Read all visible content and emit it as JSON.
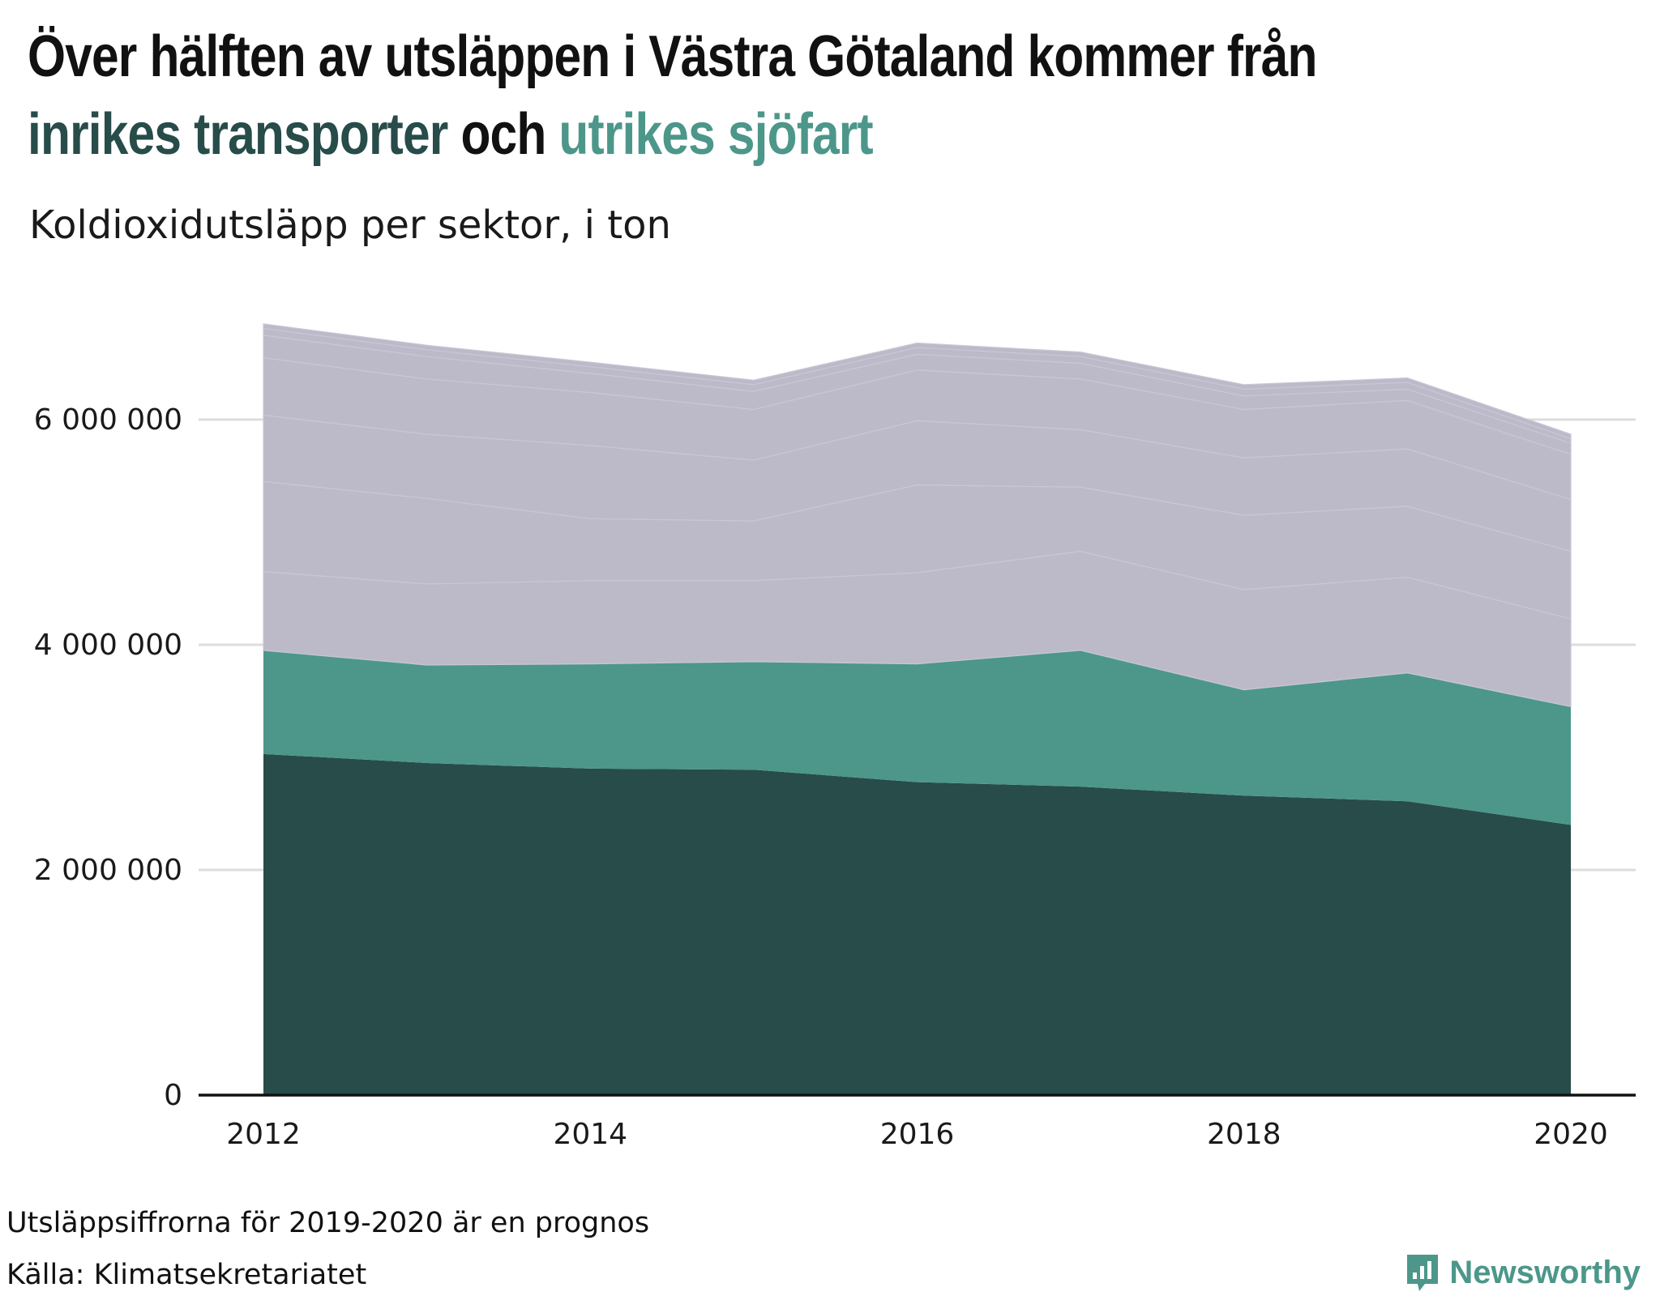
{
  "header": {
    "title_line1": "Över hälften av utsläppen i Västra Götaland kommer från",
    "title_inrikes": "inrikes transporter",
    "title_och": " och ",
    "title_utrikes": "utrikes sjöfart",
    "subtitle": "Koldioxidutsläpp per sektor, i ton"
  },
  "footer": {
    "note": "Utsläppsiffrorna för 2019-2020 är en prognos",
    "source": "Källa: Klimatsekretariatet",
    "brand": "Newsworthy"
  },
  "colors": {
    "inrikes": "#274c4a",
    "utrikes": "#4c978a",
    "other": "#bcbac9",
    "grid": "#dddddd",
    "axis": "#111111",
    "brand": "#4c978a"
  },
  "icons": {
    "brand": "newsworthy-logo-icon"
  },
  "chart_data": {
    "type": "area",
    "stacked": true,
    "x": [
      2012,
      2013,
      2014,
      2015,
      2016,
      2017,
      2018,
      2019,
      2020
    ],
    "xticks": [
      "2012",
      "2014",
      "2016",
      "2018",
      "2020"
    ],
    "yticks": [
      "0",
      "2 000 000",
      "4 000 000",
      "6 000 000"
    ],
    "ylim": [
      0,
      7000000
    ],
    "grid": true,
    "series": [
      {
        "color": "#274c4a",
        "values": [
          3030000,
          2950000,
          2900000,
          2890000,
          2780000,
          2740000,
          2660000,
          2610000,
          2400000
        ]
      },
      {
        "color": "#4c978a",
        "values": [
          920000,
          870000,
          930000,
          960000,
          1050000,
          1210000,
          940000,
          1140000,
          1050000
        ]
      },
      {
        "color": "#bcbac9",
        "values": [
          700000,
          720000,
          740000,
          720000,
          810000,
          880000,
          890000,
          850000,
          780000
        ]
      },
      {
        "color": "#bcbac9",
        "values": [
          800000,
          760000,
          550000,
          530000,
          780000,
          570000,
          660000,
          630000,
          600000
        ]
      },
      {
        "color": "#bcbac9",
        "values": [
          590000,
          570000,
          650000,
          540000,
          570000,
          510000,
          510000,
          510000,
          460000
        ]
      },
      {
        "color": "#bcbac9",
        "values": [
          510000,
          490000,
          470000,
          450000,
          450000,
          450000,
          430000,
          430000,
          400000
        ]
      },
      {
        "color": "#bcbac9",
        "values": [
          200000,
          200000,
          170000,
          160000,
          140000,
          140000,
          120000,
          100000,
          100000
        ]
      },
      {
        "color": "#bcbac9",
        "values": [
          60000,
          60000,
          60000,
          60000,
          60000,
          60000,
          60000,
          60000,
          40000
        ]
      },
      {
        "color": "#bcbac9",
        "values": [
          40000,
          40000,
          40000,
          40000,
          40000,
          40000,
          40000,
          40000,
          40000
        ]
      }
    ]
  }
}
